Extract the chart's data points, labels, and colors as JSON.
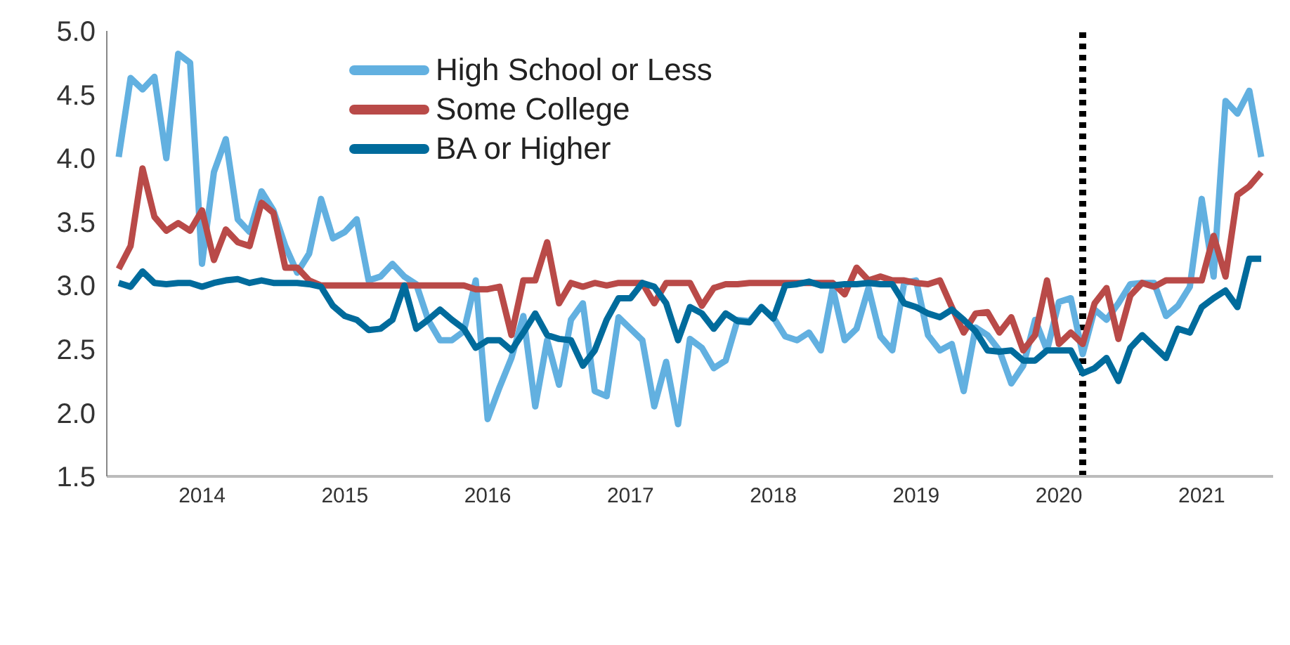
{
  "chart_data": {
    "type": "line",
    "x": [
      "2013-06",
      "2013-07",
      "2013-08",
      "2013-09",
      "2013-10",
      "2013-11",
      "2013-12",
      "2014-01",
      "2014-02",
      "2014-03",
      "2014-04",
      "2014-05",
      "2014-06",
      "2014-07",
      "2014-08",
      "2014-09",
      "2014-10",
      "2014-11",
      "2014-12",
      "2015-01",
      "2015-02",
      "2015-03",
      "2015-04",
      "2015-05",
      "2015-06",
      "2015-07",
      "2015-08",
      "2015-09",
      "2015-10",
      "2015-11",
      "2015-12",
      "2016-01",
      "2016-02",
      "2016-03",
      "2016-04",
      "2016-05",
      "2016-06",
      "2016-07",
      "2016-08",
      "2016-09",
      "2016-10",
      "2016-11",
      "2016-12",
      "2017-01",
      "2017-02",
      "2017-03",
      "2017-04",
      "2017-05",
      "2017-06",
      "2017-07",
      "2017-08",
      "2017-09",
      "2017-10",
      "2017-11",
      "2017-12",
      "2018-01",
      "2018-02",
      "2018-03",
      "2018-04",
      "2018-05",
      "2018-06",
      "2018-07",
      "2018-08",
      "2018-09",
      "2018-10",
      "2018-11",
      "2018-12",
      "2019-01",
      "2019-02",
      "2019-03",
      "2019-04",
      "2019-05",
      "2019-06",
      "2019-07",
      "2019-08",
      "2019-09",
      "2019-10",
      "2019-11",
      "2019-12",
      "2020-01",
      "2020-02",
      "2020-03",
      "2020-04",
      "2020-05",
      "2020-06",
      "2020-07",
      "2020-08",
      "2020-09",
      "2020-10",
      "2020-11",
      "2020-12",
      "2021-01",
      "2021-02",
      "2021-03",
      "2021-04",
      "2021-05",
      "2021-06"
    ],
    "series": [
      {
        "name": "High School or Less",
        "color": "#62b0e0",
        "values": [
          4.01,
          4.63,
          4.54,
          4.64,
          4.0,
          4.82,
          4.75,
          3.17,
          3.89,
          4.15,
          3.52,
          3.42,
          3.74,
          3.59,
          3.31,
          3.1,
          3.25,
          3.68,
          3.37,
          3.42,
          3.52,
          3.04,
          3.07,
          3.17,
          3.07,
          3.01,
          2.73,
          2.57,
          2.57,
          2.64,
          3.04,
          1.95,
          2.2,
          2.43,
          2.76,
          2.05,
          2.57,
          2.22,
          2.73,
          2.86,
          2.17,
          2.13,
          2.75,
          2.66,
          2.57,
          2.05,
          2.4,
          1.91,
          2.58,
          2.51,
          2.35,
          2.41,
          2.73,
          2.72,
          2.83,
          2.75,
          2.6,
          2.57,
          2.63,
          2.49,
          2.98,
          2.57,
          2.66,
          2.98,
          2.6,
          2.49,
          3.02,
          3.04,
          2.61,
          2.49,
          2.54,
          2.17,
          2.67,
          2.61,
          2.49,
          2.23,
          2.37,
          2.73,
          2.49,
          2.87,
          2.9,
          2.46,
          2.81,
          2.73,
          2.86,
          3.01,
          3.02,
          3.02,
          2.76,
          2.84,
          2.99,
          3.68,
          3.07,
          4.45,
          4.35,
          4.53,
          4.01
        ]
      },
      {
        "name": "Some College",
        "color": "#b94a48",
        "values": [
          3.13,
          3.31,
          3.92,
          3.54,
          3.43,
          3.49,
          3.43,
          3.59,
          3.2,
          3.44,
          3.34,
          3.31,
          3.65,
          3.57,
          3.14,
          3.14,
          3.04,
          3.0,
          3.0,
          3.0,
          3.0,
          3.0,
          3.0,
          3.0,
          3.0,
          3.0,
          3.0,
          3.0,
          3.0,
          3.0,
          2.97,
          2.97,
          2.99,
          2.61,
          3.04,
          3.04,
          3.34,
          2.86,
          3.02,
          2.99,
          3.02,
          3.0,
          3.02,
          3.02,
          3.02,
          2.86,
          3.02,
          3.02,
          3.02,
          2.84,
          2.98,
          3.01,
          3.01,
          3.02,
          3.02,
          3.02,
          3.02,
          3.02,
          3.02,
          3.02,
          3.02,
          2.93,
          3.14,
          3.04,
          3.07,
          3.04,
          3.04,
          3.02,
          3.01,
          3.04,
          2.83,
          2.63,
          2.78,
          2.79,
          2.63,
          2.75,
          2.49,
          2.61,
          3.04,
          2.54,
          2.63,
          2.54,
          2.86,
          2.98,
          2.58,
          2.92,
          3.02,
          2.99,
          3.04,
          3.04,
          3.04,
          3.04,
          3.39,
          3.07,
          3.71,
          3.78,
          3.89
        ]
      },
      {
        "name": "BA or Higher",
        "color": "#006b9c",
        "values": [
          3.02,
          2.99,
          3.11,
          3.02,
          3.01,
          3.02,
          3.02,
          2.99,
          3.02,
          3.04,
          3.05,
          3.02,
          3.04,
          3.02,
          3.02,
          3.02,
          3.01,
          2.99,
          2.84,
          2.76,
          2.73,
          2.65,
          2.66,
          2.73,
          3.0,
          2.66,
          2.73,
          2.81,
          2.73,
          2.66,
          2.51,
          2.57,
          2.57,
          2.49,
          2.63,
          2.78,
          2.61,
          2.58,
          2.57,
          2.37,
          2.49,
          2.73,
          2.9,
          2.9,
          3.02,
          2.99,
          2.86,
          2.57,
          2.83,
          2.78,
          2.66,
          2.78,
          2.72,
          2.71,
          2.83,
          2.74,
          3.0,
          3.01,
          3.03,
          3.0,
          3.0,
          3.01,
          3.01,
          3.02,
          3.01,
          3.01,
          2.86,
          2.83,
          2.78,
          2.75,
          2.81,
          2.73,
          2.64,
          2.49,
          2.48,
          2.49,
          2.41,
          2.41,
          2.49,
          2.49,
          2.49,
          2.31,
          2.35,
          2.43,
          2.25,
          2.51,
          2.61,
          2.52,
          2.43,
          2.66,
          2.63,
          2.83,
          2.9,
          2.96,
          2.83,
          3.21,
          3.21
        ]
      }
    ],
    "xlim": [
      "2013-05",
      "2021-07"
    ],
    "xticks": [
      {
        "value": "2014-01",
        "label": "2014"
      },
      {
        "value": "2015-01",
        "label": "2015"
      },
      {
        "value": "2016-01",
        "label": "2016"
      },
      {
        "value": "2017-01",
        "label": "2017"
      },
      {
        "value": "2018-01",
        "label": "2018"
      },
      {
        "value": "2019-01",
        "label": "2019"
      },
      {
        "value": "2020-01",
        "label": "2020"
      },
      {
        "value": "2021-01",
        "label": "2021"
      }
    ],
    "ylim": [
      1.5,
      5.0
    ],
    "yticks": [
      1.5,
      {
        "value": 2,
        "label": "2.0"
      },
      2.5,
      {
        "value": 3,
        "label": "3.0"
      },
      3.5,
      {
        "value": 4,
        "label": "4.0"
      },
      4.5,
      {
        "value": 5,
        "label": "5.0"
      }
    ],
    "ref_lines": [
      {
        "axis": "x",
        "value": "2020-03",
        "color": "#000000",
        "line_style": "dotted"
      }
    ],
    "legend": "top left",
    "grid": false
  }
}
